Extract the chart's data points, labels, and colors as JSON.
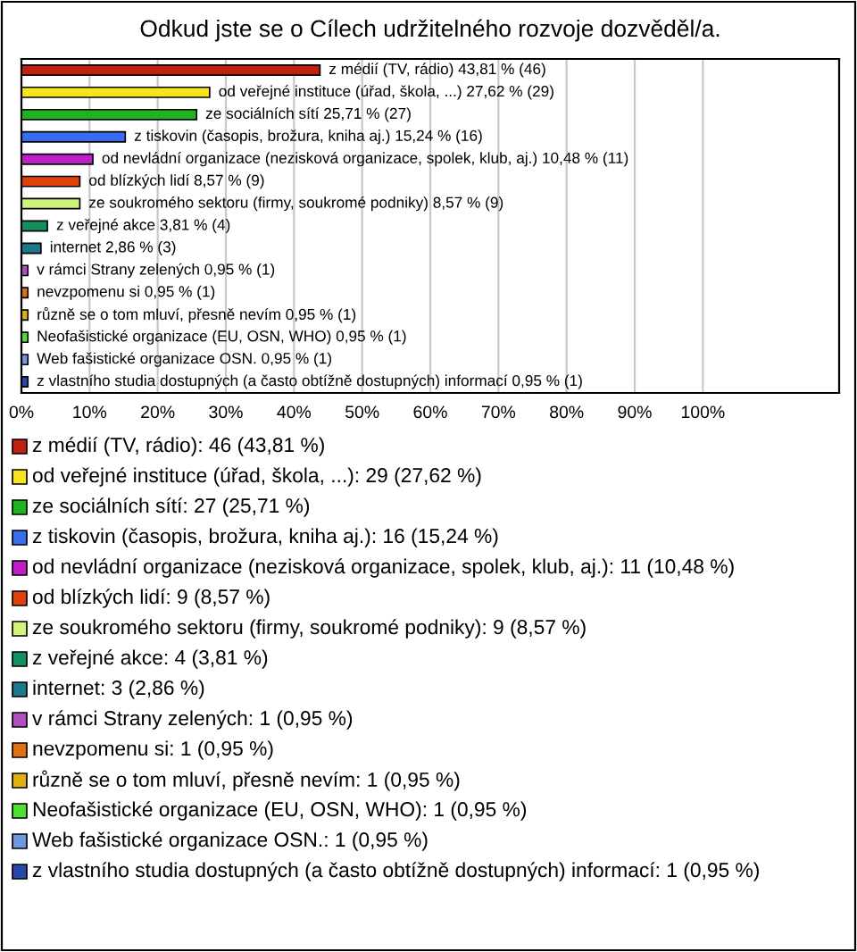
{
  "chart_data": {
    "type": "bar",
    "orientation": "horizontal",
    "title": "Odkud jste se o Cílech udržitelného rozvoje dozvěděl/a.",
    "categories": [
      null,
      null,
      null,
      null,
      null,
      null,
      null,
      null,
      null,
      null,
      null,
      null,
      null,
      null,
      null
    ],
    "values": [
      43.81,
      27.62,
      25.71,
      15.24,
      10.48,
      8.57,
      8.57,
      3.81,
      2.86,
      0.95,
      0.95,
      0.95,
      0.95,
      0.95,
      0.95
    ],
    "colors": [
      "#c0220f",
      "#f5e51c",
      "#1fb41f",
      "#3a6cf0",
      "#c01ec8",
      "#e0400a",
      "#ccf57a",
      "#149060",
      "#1a7a8c",
      "#b050c0",
      "#e07010",
      "#e0b010",
      "#50e030",
      "#7098e0",
      "#2848b0"
    ],
    "value_labels": [
      "z médií (TV, rádio) 43,81 % (46)",
      "od veřejné instituce (úřad, škola, ...) 27,62 % (29)",
      "ze sociálních sítí 25,71 % (27)",
      "z tiskovin (časopis, brožura, kniha aj.) 15,24 % (16)",
      "od nevládní organizace (nezisková organizace, spolek, klub, aj.) 10,48 % (11)",
      "od blízkých lidí 8,57 % (9)",
      "ze soukromého sektoru (firmy, soukromé podniky) 8,57 % (9)",
      "z veřejné akce 3,81 % (4)",
      "internet 2,86 % (3)",
      "v rámci Strany zelených 0,95 % (1)",
      "nevzpomenu si 0,95 % (1)",
      "různě se o tom mluví, přesně nevím 0,95 % (1)",
      "Neofašistické organizace (EU, OSN, WHO) 0,95 % (1)",
      "Web fašistické organizace OSN. 0,95 % (1)",
      "z vlastního studia dostupných (a často obtížně dostupných) informací 0,95 % (1)"
    ],
    "annotations": [
      "z médií (TV, rádio): 46 (43,81 %)",
      "od veřejné instituce (úřad, škola, ...): 29 (27,62 %)",
      "ze sociálních sítí: 27 (25,71 %)",
      "z tiskovin (časopis, brožura, kniha aj.): 16 (15,24 %)",
      "od nevládní organizace (nezisková organizace, spolek, klub, aj.): 11 (10,48 %)",
      "od blízkých lidí: 9 (8,57 %)",
      "ze soukromého sektoru (firmy, soukromé podniky): 9 (8,57 %)",
      "z veřejné akce: 4 (3,81 %)",
      "internet: 3 (2,86 %)",
      "v rámci Strany zelených: 1 (0,95 %)",
      "nevzpomenu si: 1 (0,95 %)",
      "různě se o tom mluví, přesně nevím: 1 (0,95 %)",
      "Neofašistické organizace (EU, OSN, WHO): 1 (0,95 %)",
      "Web fašistické organizace OSN.: 1 (0,95 %)",
      "z vlastního studia dostupných (a často obtížně dostupných) informací: 1 (0,95 %)"
    ],
    "xlim": [
      0,
      120
    ],
    "xticks": [
      {
        "value": 0,
        "label": "0%"
      },
      {
        "value": 10,
        "label": "10%"
      },
      {
        "value": 20,
        "label": "20%"
      },
      {
        "value": 30,
        "label": "30%"
      },
      {
        "value": 40,
        "label": "40%"
      },
      {
        "value": 50,
        "label": "50%"
      },
      {
        "value": 60,
        "label": "60%"
      },
      {
        "value": 70,
        "label": "70%"
      },
      {
        "value": 80,
        "label": "80%"
      },
      {
        "value": 90,
        "label": "90%"
      },
      {
        "value": 100,
        "label": "100%"
      }
    ],
    "tick_labels": "x",
    "grid": "x"
  }
}
